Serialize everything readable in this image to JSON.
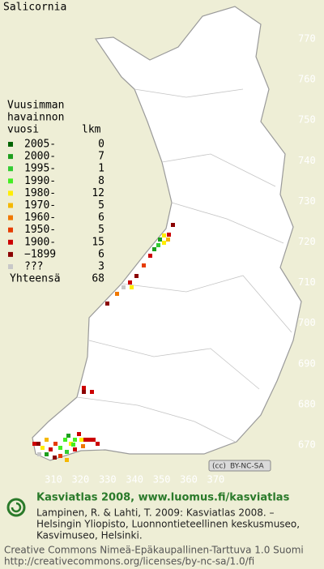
{
  "title": "Salicornia",
  "legend": {
    "heading": [
      "Vuusimman",
      "havainnon"
    ],
    "columns": [
      "vuosi",
      "lkm"
    ],
    "rows": [
      {
        "label": "2005-",
        "count": 0,
        "color": "#006400"
      },
      {
        "label": "2000-",
        "count": 7,
        "color": "#1e9e1e"
      },
      {
        "label": "1995-",
        "count": 1,
        "color": "#33cc33"
      },
      {
        "label": "1990-",
        "count": 8,
        "color": "#44ee22"
      },
      {
        "label": "1980-",
        "count": 12,
        "color": "#ffee00"
      },
      {
        "label": "1970-",
        "count": 5,
        "color": "#f5b800"
      },
      {
        "label": "1960-",
        "count": 6,
        "color": "#f07800"
      },
      {
        "label": "1950-",
        "count": 5,
        "color": "#e63c00"
      },
      {
        "label": "1900-",
        "count": 15,
        "color": "#cc0000"
      },
      {
        "label": "−1899",
        "count": 6,
        "color": "#8b0000"
      },
      {
        "label": "???",
        "count": 3,
        "color": "#c8c8c8"
      }
    ],
    "total": {
      "label": "Yhteensä",
      "count": 68
    }
  },
  "grid": {
    "y_labels": [
      770,
      760,
      750,
      740,
      730,
      720,
      710,
      700,
      690,
      680,
      670
    ],
    "x_labels": [
      310,
      320,
      330,
      340,
      350,
      360,
      370
    ]
  },
  "badge": {
    "cc": "(cc)",
    "license": "BY-NC-SA"
  },
  "footer": {
    "headline": "Kasviatlas 2008, www.luomus.fi/kasviatlas",
    "citation": [
      "Lampinen, R. & Lahti, T. 2009: Kasviatlas 2008. –",
      "Helsingin Yliopisto, Luonnontieteellinen keskusmuseo,",
      "Kasvimuseo, Helsinki."
    ],
    "license": [
      "Creative Commons Nimeä-Epäkaupallinen-Tarttuva 1.0 Suomi",
      "http://creativecommons.org/licenses/by-nc-sa/1.0/fi"
    ]
  }
}
